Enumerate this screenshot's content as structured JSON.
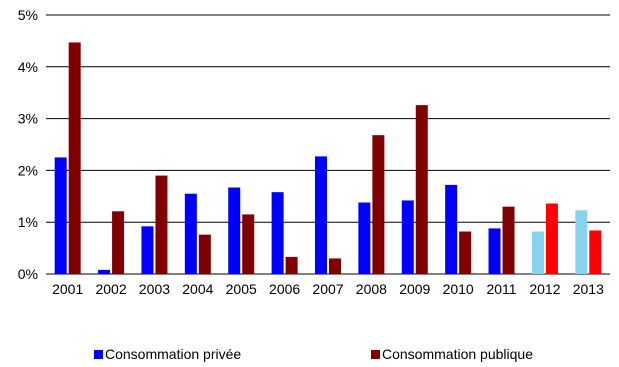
{
  "chart_data": {
    "type": "bar",
    "categories": [
      "2001",
      "2002",
      "2003",
      "2004",
      "2005",
      "2006",
      "2007",
      "2008",
      "2009",
      "2010",
      "2011",
      "2012",
      "2013"
    ],
    "series": [
      {
        "name": "Consommation privée",
        "values": [
          2.25,
          0.08,
          0.92,
          1.55,
          1.67,
          1.58,
          2.27,
          1.38,
          1.42,
          1.72,
          0.88,
          0.82,
          1.23
        ],
        "color": "#0000FF",
        "projected_color": "#87D2EE"
      },
      {
        "name": "Consommation publique",
        "values": [
          4.47,
          1.21,
          1.9,
          0.76,
          1.15,
          0.33,
          0.3,
          2.68,
          3.26,
          0.82,
          1.3,
          1.36,
          0.84
        ],
        "color": "#800000",
        "projected_color": "#FF0000"
      }
    ],
    "projected_categories": [
      "2012",
      "2013"
    ],
    "y_ticks": [
      "0%",
      "1%",
      "2%",
      "3%",
      "4%",
      "5%"
    ],
    "ylim": [
      0,
      5
    ],
    "grid": true,
    "legend_position": "bottom"
  }
}
